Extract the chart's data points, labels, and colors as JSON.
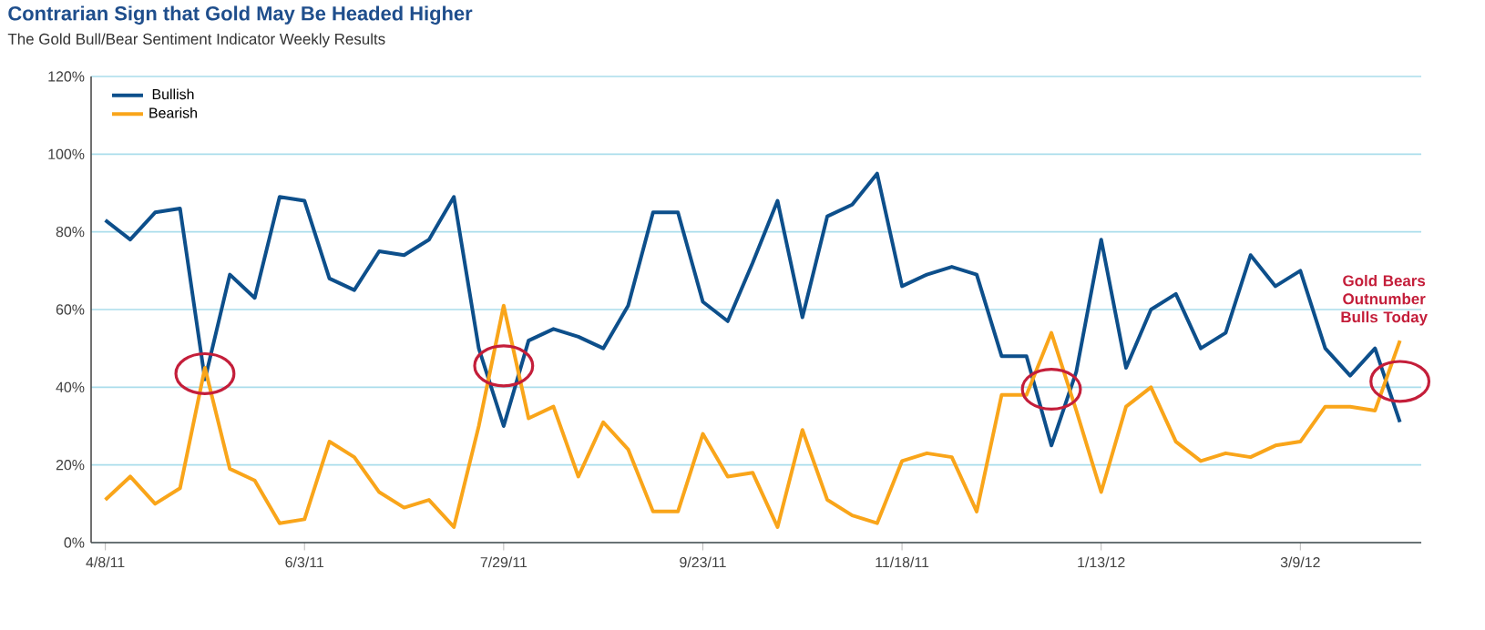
{
  "chart_data": {
    "type": "line",
    "title": "Contrarian Sign that Gold May Be Headed Higher",
    "subtitle": "The Gold Bull/Bear Sentiment Indicator Weekly Results",
    "x": [
      "2011-04-08",
      "2011-04-15",
      "2011-04-22",
      "2011-04-29",
      "2011-05-06",
      "2011-05-13",
      "2011-05-20",
      "2011-05-27",
      "2011-06-03",
      "2011-06-10",
      "2011-06-17",
      "2011-06-24",
      "2011-07-01",
      "2011-07-08",
      "2011-07-15",
      "2011-07-22",
      "2011-07-29",
      "2011-08-05",
      "2011-08-12",
      "2011-08-19",
      "2011-08-26",
      "2011-09-02",
      "2011-09-09",
      "2011-09-16",
      "2011-09-23",
      "2011-09-30",
      "2011-10-07",
      "2011-10-14",
      "2011-10-21",
      "2011-10-28",
      "2011-11-04",
      "2011-11-11",
      "2011-11-18",
      "2011-11-25",
      "2011-12-02",
      "2011-12-09",
      "2011-12-16",
      "2011-12-23",
      "2011-12-30",
      "2012-01-06",
      "2012-01-13",
      "2012-01-20",
      "2012-01-27",
      "2012-02-03",
      "2012-02-10",
      "2012-02-17",
      "2012-02-24",
      "2012-03-02",
      "2012-03-09",
      "2012-03-16",
      "2012-03-23",
      "2012-03-30",
      "2012-04-06"
    ],
    "series": [
      {
        "name": "Bullish",
        "color": "#0d4f8b",
        "values": [
          83,
          78,
          85,
          86,
          42,
          69,
          63,
          89,
          88,
          68,
          65,
          75,
          74,
          78,
          89,
          50,
          30,
          52,
          55,
          53,
          50,
          61,
          85,
          85,
          62,
          57,
          72,
          88,
          58,
          84,
          87,
          95,
          66,
          69,
          71,
          69,
          48,
          48,
          25,
          44,
          78,
          45,
          60,
          64,
          50,
          54,
          74,
          66,
          70,
          50,
          43,
          50,
          31
        ]
      },
      {
        "name": "Bearish",
        "color": "#f9a51a",
        "values": [
          11,
          17,
          10,
          14,
          45,
          19,
          16,
          5,
          6,
          26,
          22,
          13,
          9,
          11,
          4,
          30,
          61,
          32,
          35,
          17,
          31,
          24,
          8,
          8,
          28,
          17,
          18,
          4,
          29,
          11,
          7,
          5,
          21,
          23,
          22,
          8,
          38,
          38,
          54,
          34,
          13,
          35,
          40,
          26,
          21,
          23,
          22,
          25,
          26,
          35,
          35,
          34,
          52
        ]
      }
    ],
    "xlim": [
      "2011-04-04",
      "2012-04-12"
    ],
    "xticks": [
      {
        "value": "2011-04-08",
        "label": "4/8/11"
      },
      {
        "value": "2011-06-03",
        "label": "6/3/11"
      },
      {
        "value": "2011-07-29",
        "label": "7/29/11"
      },
      {
        "value": "2011-09-23",
        "label": "9/23/11"
      },
      {
        "value": "2011-11-18",
        "label": "11/18/11"
      },
      {
        "value": "2012-01-13",
        "label": "1/13/12"
      },
      {
        "value": "2012-03-09",
        "label": "3/9/12"
      }
    ],
    "ylim": [
      0,
      120
    ],
    "yticks": [
      {
        "value": 0,
        "label": "0%"
      },
      {
        "value": 20,
        "label": "20%"
      },
      {
        "value": 40,
        "label": "40%"
      },
      {
        "value": 60,
        "label": "60%"
      },
      {
        "value": 80,
        "label": "80%"
      },
      {
        "value": 100,
        "label": "100%"
      },
      {
        "value": 120,
        "label": "120%"
      }
    ],
    "grid": "y",
    "legend": "top left",
    "marker": "none",
    "line_style": "solid",
    "annotations": [
      "Gold Bears Outnumber Bulls Today"
    ]
  }
}
